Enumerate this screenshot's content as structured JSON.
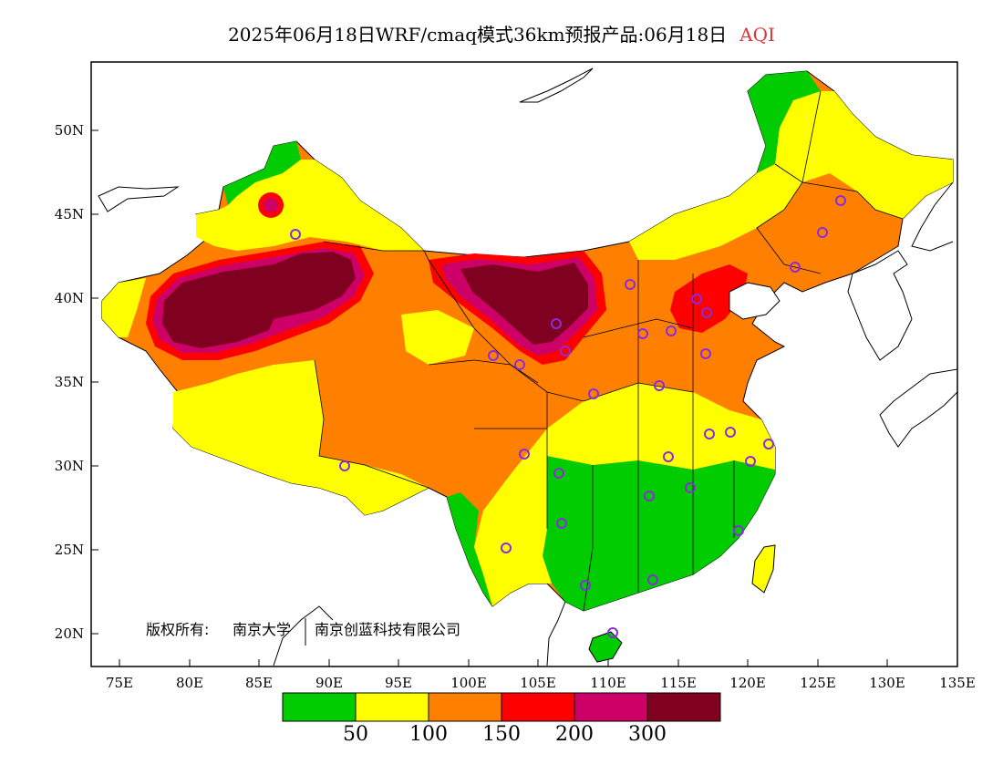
{
  "title": {
    "main": "2025年06月18日WRF/cmaq模式36km预报产品:06月18日",
    "variable": "AQI"
  },
  "axes": {
    "lat_labels": [
      "50N",
      "45N",
      "40N",
      "35N",
      "30N",
      "25N",
      "20N"
    ],
    "lon_labels": [
      "75E",
      "80E",
      "85E",
      "90E",
      "95E",
      "100E",
      "105E",
      "110E",
      "115E",
      "120E",
      "125E",
      "130E",
      "135E"
    ],
    "lon_range": [
      73,
      135
    ],
    "lat_range": [
      18,
      54
    ]
  },
  "copyright": {
    "owner_prefix": "版权所有:",
    "org1": "南京大学",
    "org2": "南京创蓝科技有限公司"
  },
  "legend": {
    "colors": [
      "#00cc00",
      "#ffff00",
      "#ff8000",
      "#ff0000",
      "#cc0066",
      "#800020"
    ],
    "thresholds": [
      "50",
      "100",
      "150",
      "200",
      "300"
    ]
  },
  "colors": {
    "good": "#00cc00",
    "moderate": "#ffff00",
    "unhealthy_sensitive": "#ff8000",
    "unhealthy": "#ff0000",
    "very_unhealthy": "#cc0066",
    "hazardous": "#800020",
    "station_marker": "#8a2be2"
  }
}
